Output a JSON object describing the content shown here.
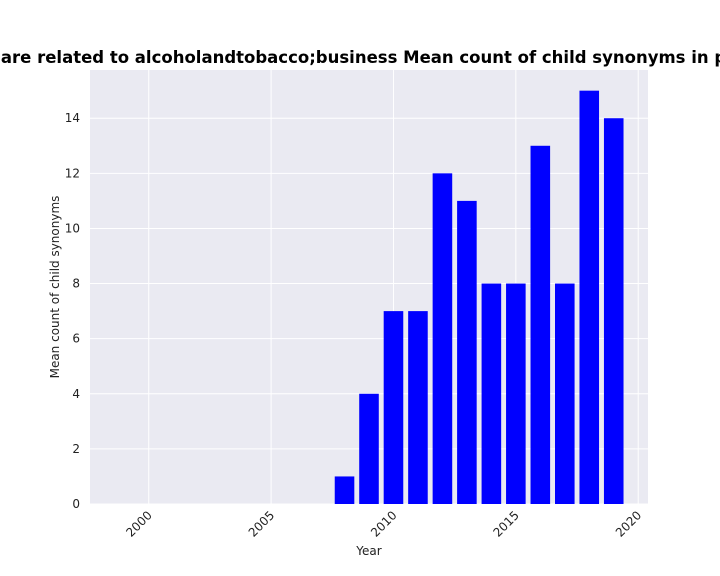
{
  "chart_data": {
    "type": "bar",
    "title": "Categories are related to alcoholandtobacco;business Mean count of child synonyms in privacy policy",
    "xlabel": "Year",
    "ylabel": "Mean count of child synonyms",
    "x": [
      2008,
      2009,
      2010,
      2011,
      2012,
      2013,
      2014,
      2015,
      2016,
      2017,
      2018,
      2019
    ],
    "values": [
      1,
      4,
      7,
      7,
      12,
      11,
      8,
      8,
      13,
      8,
      15,
      14
    ],
    "xlim": [
      1997.6,
      2020.4
    ],
    "ylim": [
      0,
      15.75
    ],
    "xticks": [
      2000,
      2005,
      2010,
      2015,
      2020
    ],
    "yticks": [
      0,
      2,
      4,
      6,
      8,
      10,
      12,
      14
    ],
    "bar_color": "#0000ff",
    "background_color": "#eaeaf2",
    "grid": true,
    "legend": "none"
  }
}
